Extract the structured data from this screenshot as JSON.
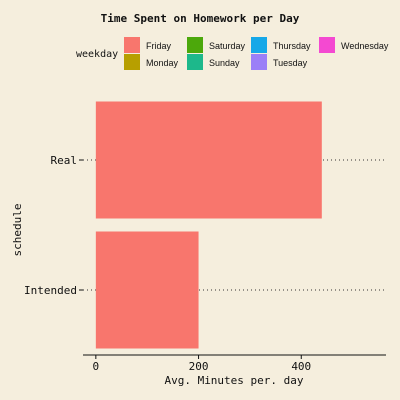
{
  "chart_data": {
    "type": "bar",
    "orientation": "horizontal",
    "title": "Time Spent on Homework per Day",
    "xlabel": "Avg. Minutes per. day",
    "ylabel": "schedule",
    "categories": [
      "Intended",
      "Real"
    ],
    "series": [
      {
        "name": "Friday",
        "color": "#f8766d",
        "values": [
          200,
          440
        ]
      }
    ],
    "xlim": [
      -25,
      565
    ],
    "xticks": [
      0,
      200,
      400
    ],
    "grid": "dotted horizontal lines at categories",
    "legend": {
      "title": "weekday",
      "placement": "top",
      "entries": [
        {
          "label": "Friday",
          "color": "#f8766d"
        },
        {
          "label": "Monday",
          "color": "#b79f00"
        },
        {
          "label": "Saturday",
          "color": "#4ca80b"
        },
        {
          "label": "Sunday",
          "color": "#1db88b"
        },
        {
          "label": "Thursday",
          "color": "#16a8e8"
        },
        {
          "label": "Tuesday",
          "color": "#9b7ff7"
        },
        {
          "label": "Wednesday",
          "color": "#f449d1"
        }
      ]
    }
  }
}
